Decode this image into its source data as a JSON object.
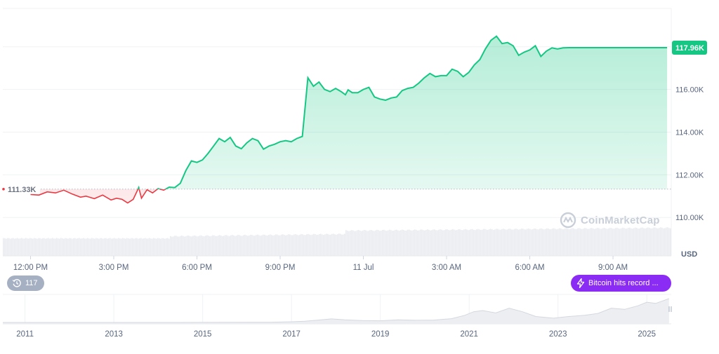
{
  "chart_data": [
    {
      "type": "area",
      "x_ticks": [
        "12:00 PM",
        "3:00 PM",
        "6:00 PM",
        "9:00 PM",
        "11 Jul",
        "3:00 AM",
        "6:00 AM",
        "9:00 AM"
      ],
      "y_ticks": [
        "110.00K",
        "112.00K",
        "114.00K",
        "116.00K"
      ],
      "y_tick_values": [
        110000,
        112000,
        114000,
        116000
      ],
      "ylim": [
        108200,
        119800
      ],
      "y_unit": "USD",
      "baseline": {
        "value": 111330,
        "label": "111.33K"
      },
      "current": {
        "value": 117960,
        "label": "117.96K"
      },
      "grid": true,
      "colors": {
        "up": "#16c784",
        "down": "#ea3943",
        "volume": "#e9ebef",
        "badge": "#16c784"
      },
      "series": [
        {
          "x_hours_from_11am": [
            1.0,
            1.3,
            1.6,
            1.9,
            2.2,
            2.5,
            2.8,
            3.0,
            3.3,
            3.6,
            3.9,
            4.1,
            4.3,
            4.5,
            4.7,
            4.9,
            5.0,
            5.2,
            5.4,
            5.6,
            5.8,
            6.0,
            6.2,
            6.4,
            6.6,
            6.8,
            7.0,
            7.2,
            7.4,
            7.6,
            7.8,
            8.0,
            8.2,
            8.4,
            8.6,
            8.8,
            9.0,
            9.2,
            9.4,
            9.6,
            9.8,
            10.0,
            10.2,
            10.4,
            10.6,
            10.8,
            11.0,
            11.2,
            11.4,
            11.6,
            11.8,
            12.0,
            12.2,
            12.35,
            12.45,
            12.6,
            12.8,
            13.0,
            13.2,
            13.4,
            13.6,
            13.8,
            14.0,
            14.2,
            14.4,
            14.6,
            14.8,
            15.0,
            15.2,
            15.4,
            15.6,
            15.8,
            16.0,
            16.2,
            16.4,
            16.6,
            16.8,
            17.0,
            17.2,
            17.4,
            17.6,
            17.8,
            18.0,
            18.2,
            18.4,
            18.6,
            18.8,
            19.0,
            19.2,
            19.4,
            19.6,
            19.8,
            20.0,
            20.2,
            20.4,
            20.6,
            20.8,
            21.0,
            21.2,
            21.4,
            21.6,
            21.8,
            22.0,
            22.2,
            22.4,
            22.6,
            22.8,
            23.0,
            23.2,
            23.4,
            23.6,
            23.8,
            23.95
          ],
          "values": [
            111080,
            111050,
            111200,
            111150,
            111280,
            111100,
            110950,
            111000,
            110880,
            111050,
            110820,
            110900,
            110850,
            110680,
            110850,
            111400,
            110900,
            111300,
            111150,
            111350,
            111280,
            111420,
            111400,
            111600,
            112200,
            112650,
            112580,
            112700,
            113000,
            113350,
            113700,
            113550,
            113750,
            113350,
            113220,
            113500,
            113700,
            113600,
            113200,
            113350,
            113430,
            113550,
            113600,
            113550,
            113700,
            113800,
            116550,
            116150,
            116350,
            116000,
            115900,
            116050,
            115900,
            115750,
            115980,
            115850,
            115850,
            116000,
            116100,
            115650,
            115550,
            115500,
            115600,
            115650,
            115950,
            116050,
            116100,
            116300,
            116550,
            116750,
            116600,
            116650,
            116650,
            116950,
            116850,
            116600,
            116800,
            117150,
            117400,
            117900,
            118300,
            118500,
            118150,
            118200,
            118050,
            117600,
            117750,
            117850,
            118050,
            117550,
            117800,
            117950,
            117900,
            117950,
            117960,
            117960,
            117960,
            117960,
            117960,
            117960,
            117960,
            117960,
            117960,
            117960,
            117960,
            117960,
            117960,
            117960,
            117960,
            117960,
            117960,
            117960,
            117960
          ]
        }
      ]
    },
    {
      "type": "area",
      "x_ticks": [
        "2011",
        "2013",
        "2015",
        "2017",
        "2019",
        "2021",
        "2023",
        "2025"
      ],
      "series": [
        {
          "x": [
            2010.5,
            2012,
            2013,
            2014,
            2015,
            2016,
            2016.5,
            2017,
            2017.3,
            2017.6,
            2017.9,
            2018.2,
            2018.6,
            2019,
            2019.4,
            2019.8,
            2020.2,
            2020.6,
            2020.9,
            2021.1,
            2021.3,
            2021.6,
            2021.9,
            2022.2,
            2022.5,
            2022.9,
            2023.2,
            2023.6,
            2023.9,
            2024.2,
            2024.5,
            2024.8,
            2025.0,
            2025.2,
            2025.5
          ],
          "values": [
            0,
            0,
            0,
            0,
            0.002,
            0.005,
            0.01,
            0.03,
            0.05,
            0.1,
            0.15,
            0.11,
            0.08,
            0.07,
            0.11,
            0.09,
            0.1,
            0.16,
            0.3,
            0.45,
            0.5,
            0.4,
            0.6,
            0.45,
            0.25,
            0.18,
            0.24,
            0.3,
            0.38,
            0.6,
            0.55,
            0.7,
            0.85,
            0.8,
            1.0
          ]
        }
      ]
    }
  ],
  "labels": {
    "usd": "USD",
    "history_count": "117",
    "news": "Bitcoin hits record ...",
    "watermark": "CoinMarketCap"
  }
}
